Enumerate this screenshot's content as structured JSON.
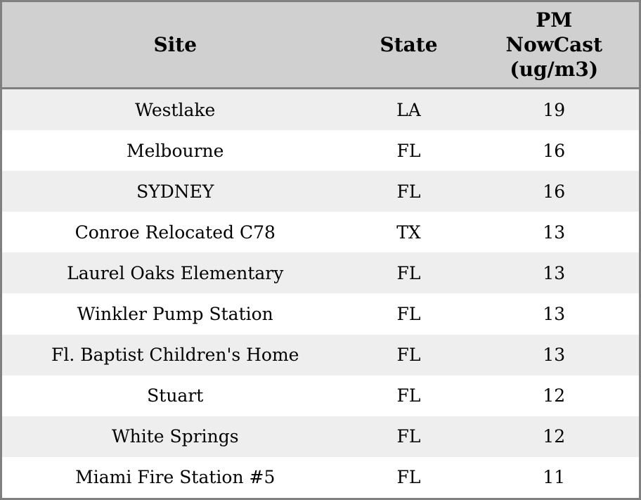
{
  "chart_data": {
    "type": "table",
    "columns": [
      "Site",
      "State",
      "PM NowCast (ug/m3)"
    ],
    "rows": [
      [
        "Westlake",
        "LA",
        19
      ],
      [
        "Melbourne",
        "FL",
        16
      ],
      [
        "SYDNEY",
        "FL",
        16
      ],
      [
        "Conroe Relocated C78",
        "TX",
        13
      ],
      [
        "Laurel Oaks Elementary",
        "FL",
        13
      ],
      [
        "Winkler Pump Station",
        "FL",
        13
      ],
      [
        "Fl. Baptist Children's Home",
        "FL",
        13
      ],
      [
        "Stuart",
        "FL",
        12
      ],
      [
        "White Springs",
        "FL",
        12
      ],
      [
        "Miami Fire Station #5",
        "FL",
        11
      ]
    ],
    "value_unit": "ug/m3",
    "layout": {
      "header_align": "center",
      "cell_align": "center",
      "row_striping": "alternating"
    }
  },
  "colors": {
    "outer_border": "#808080",
    "header_separator": "#808080",
    "header_bg": "#d0d0d0",
    "row_stripe_bg": "#eeeeee",
    "row_bg": "#ffffff",
    "text": "#000000"
  }
}
